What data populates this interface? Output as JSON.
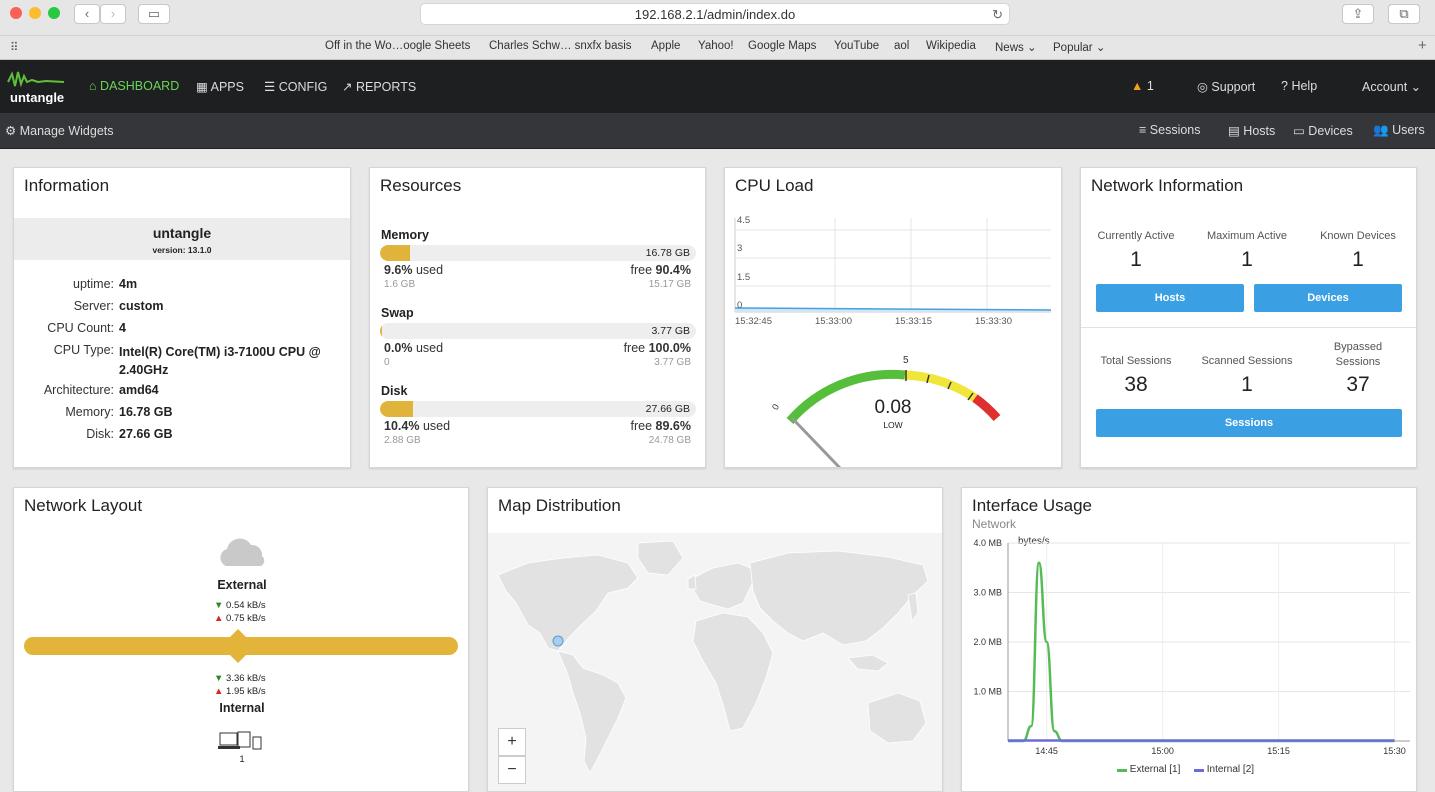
{
  "browser": {
    "url": "192.168.2.1/admin/index.do",
    "bookmarks": [
      "Off in the Wo…oogle Sheets",
      "Charles Schw… snxfx basis",
      "Apple",
      "Yahoo!",
      "Google Maps",
      "YouTube",
      "aol",
      "Wikipedia",
      "News ⌄",
      "Popular ⌄"
    ]
  },
  "nav": {
    "logo": "untangle",
    "dashboard": "DASHBOARD",
    "apps": "APPS",
    "config": "CONFIG",
    "reports": "REPORTS",
    "alerts": "1",
    "support": "Support",
    "help": "Help",
    "account": "Account"
  },
  "subnav": {
    "manage": "Manage Widgets",
    "sessions": "Sessions",
    "hosts": "Hosts",
    "devices": "Devices",
    "users": "Users"
  },
  "information": {
    "title": "Information",
    "name": "untangle",
    "version": "version: 13.1.0",
    "rows": [
      {
        "label": "uptime:",
        "value": "4m"
      },
      {
        "label": "Server:",
        "value": "custom"
      },
      {
        "label": "CPU Count:",
        "value": "4"
      },
      {
        "label": "CPU Type:",
        "value": "Intel(R) Core(TM) i3-7100U CPU @ 2.40GHz"
      },
      {
        "label": "Architecture:",
        "value": "amd64"
      },
      {
        "label": "Memory:",
        "value": "16.78 GB"
      },
      {
        "label": "Disk:",
        "value": "27.66 GB"
      }
    ]
  },
  "resources": {
    "title": "Resources",
    "items": [
      {
        "name": "Memory",
        "total": "16.78 GB",
        "used_pct": "9.6%",
        "used_label": "used",
        "free_label": "free",
        "free_pct": "90.4%",
        "used_abs": "1.6 GB",
        "free_abs": "15.17 GB",
        "fill": 0.096
      },
      {
        "name": "Swap",
        "total": "3.77 GB",
        "used_pct": "0.0%",
        "used_label": "used",
        "free_label": "free",
        "free_pct": "100.0%",
        "used_abs": "0",
        "free_abs": "3.77 GB",
        "fill": 0.0
      },
      {
        "name": "Disk",
        "total": "27.66 GB",
        "used_pct": "10.4%",
        "used_label": "used",
        "free_label": "free",
        "free_pct": "89.6%",
        "used_abs": "2.88 GB",
        "free_abs": "24.78 GB",
        "fill": 0.104
      }
    ]
  },
  "cpu": {
    "title": "CPU Load",
    "yticks": [
      "4.5",
      "3",
      "1.5",
      "0"
    ],
    "xticks": [
      "15:32:45",
      "15:33:00",
      "15:33:15",
      "15:33:30"
    ],
    "gauge_value": "0.08",
    "gauge_label": "LOW",
    "gauge_min": "0",
    "gauge_mid": "5",
    "colors": {
      "green": "#55bf3b",
      "yellow": "#f0e63a",
      "red": "#df2f2f"
    }
  },
  "network_info": {
    "title": "Network Information",
    "currently_active_label": "Currently Active",
    "currently_active": "1",
    "maximum_active_label": "Maximum Active",
    "maximum_active": "1",
    "known_devices_label": "Known Devices",
    "known_devices": "1",
    "hosts_btn": "Hosts",
    "devices_btn": "Devices",
    "total_sessions_label": "Total Sessions",
    "total_sessions": "38",
    "scanned_sessions_label": "Scanned Sessions",
    "scanned_sessions": "1",
    "bypassed_sessions_label": "Bypassed Sessions",
    "bypassed_sessions": "37",
    "sessions_btn": "Sessions"
  },
  "network_layout": {
    "title": "Network Layout",
    "external": "External",
    "ext_down": "0.54 kB/s",
    "ext_up": "0.75 kB/s",
    "int_down": "3.36 kB/s",
    "int_up": "1.95 kB/s",
    "internal": "Internal",
    "devices": "1"
  },
  "map": {
    "title": "Map Distribution",
    "zoom_in": "+",
    "zoom_out": "−"
  },
  "interface_usage": {
    "title": "Interface Usage",
    "subtitle": "Network",
    "unit_label": "bytes/s",
    "legend_external": "External [1]",
    "legend_internal": "Internal [2]"
  },
  "chart_data": {
    "type": "line",
    "title": "Interface Usage",
    "subtitle": "Network",
    "ylabel": "bytes/s",
    "yticks": [
      "1.0 MB",
      "2.0 MB",
      "3.0 MB",
      "4.0 MB"
    ],
    "xticks": [
      "14:45",
      "15:00",
      "15:15",
      "15:30"
    ],
    "ylim": [
      0,
      4.0
    ],
    "series": [
      {
        "name": "External [1]",
        "color": "#55bb55",
        "x": [
          "14:40",
          "14:42",
          "14:43",
          "14:44",
          "14:45",
          "14:46",
          "14:47",
          "14:50",
          "15:30"
        ],
        "values": [
          0,
          0,
          0.3,
          3.6,
          2.0,
          0.2,
          0,
          0,
          0
        ]
      },
      {
        "name": "Internal [2]",
        "color": "#6b6bdf",
        "x": [
          "14:40",
          "15:30"
        ],
        "values": [
          0.01,
          0.01
        ]
      }
    ]
  }
}
